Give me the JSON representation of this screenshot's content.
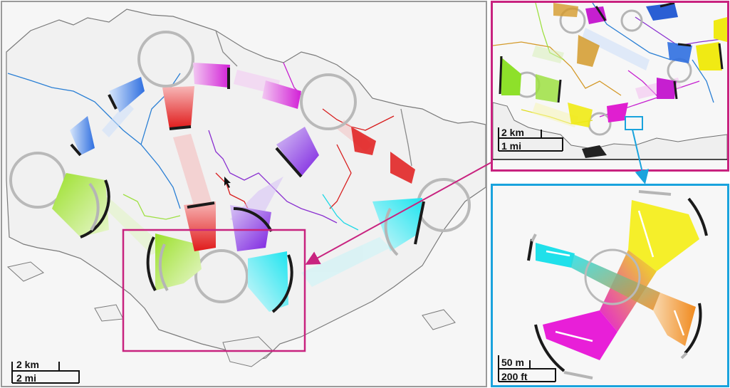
{
  "main_map": {
    "scale_bar": {
      "metric_label": "2 km",
      "imperial_label": "2 mi"
    }
  },
  "inset_top": {
    "scale_bar": {
      "metric_label": "2 km",
      "imperial_label": "1 mi"
    }
  },
  "inset_bottom": {
    "scale_bar": {
      "metric_label": "50 m",
      "imperial_label": "200 ft"
    }
  },
  "colors": {
    "main_border": "#9a9a9a",
    "highlight_magenta": "#c8237f",
    "highlight_cyan": "#1aa3dd",
    "land": "#f2f2f2",
    "coast": "#777777"
  }
}
